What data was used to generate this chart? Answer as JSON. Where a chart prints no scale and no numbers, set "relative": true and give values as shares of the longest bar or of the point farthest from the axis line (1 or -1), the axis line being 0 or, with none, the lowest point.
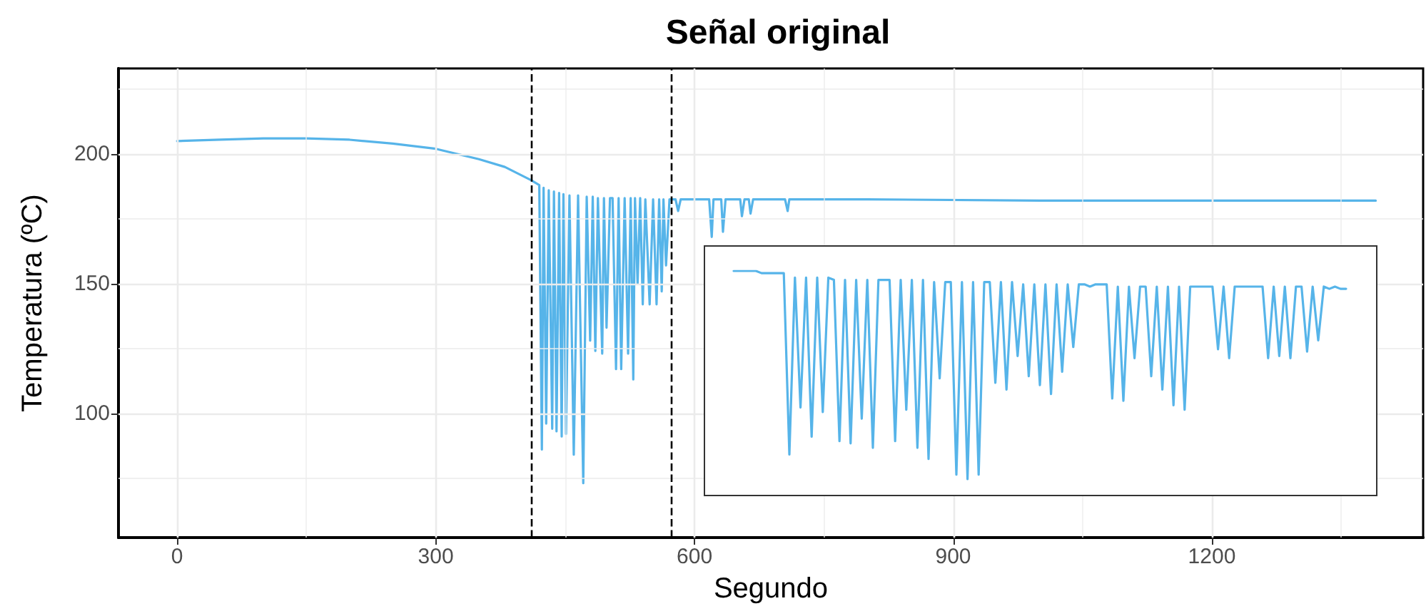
{
  "chart_data": [
    {
      "type": "line",
      "title": "Señal original",
      "xlabel": "Segundo",
      "ylabel": "Temperatura (ºC)",
      "xlim": [
        -68,
        1445
      ],
      "ylim": [
        52,
        233
      ],
      "xticks": [
        0,
        300,
        600,
        900,
        1200
      ],
      "yticks": [
        100,
        150,
        200
      ],
      "grid": true,
      "marker": "none",
      "line_style": "solid",
      "series": [
        {
          "color": "#56b4e9",
          "x": [
            0,
            50,
            100,
            150,
            200,
            250,
            300,
            350,
            380,
            410,
            420,
            423,
            425,
            428,
            431,
            435,
            437,
            440,
            443,
            446,
            448,
            451,
            455,
            460,
            465,
            471,
            475,
            479,
            482,
            485,
            488,
            493,
            495,
            498,
            502,
            505,
            509,
            512,
            515,
            519,
            523,
            526,
            529,
            531,
            534,
            537,
            540,
            543,
            548,
            552,
            556,
            559,
            562,
            564,
            567,
            571,
            578,
            581,
            584,
            617,
            620,
            622,
            631,
            633,
            636,
            653,
            655,
            658,
            663,
            665,
            668,
            705,
            708,
            710,
            800,
            1000,
            1200,
            1390
          ],
          "values": [
            205,
            205.5,
            206,
            206,
            205.5,
            204,
            202,
            198,
            195,
            190,
            188,
            86,
            187,
            96,
            186,
            94,
            185.5,
            93,
            185,
            91,
            184.5,
            92,
            184,
            84,
            184,
            73,
            183.5,
            128,
            183.5,
            124,
            183,
            123,
            183,
            133,
            183,
            183,
            117,
            183,
            117,
            183,
            123,
            183,
            113,
            183,
            150,
            183,
            142,
            182.5,
            142,
            182.5,
            142,
            182.5,
            147,
            182.5,
            157,
            182.5,
            182.5,
            178,
            182.5,
            182.5,
            168,
            182.5,
            182.5,
            170,
            182.5,
            182.5,
            176,
            182.5,
            182.5,
            177,
            182.5,
            182.5,
            178,
            182.5,
            182.5,
            182,
            182,
            182
          ]
        }
      ],
      "ref_lines": [
        {
          "axis": "x",
          "value": 410,
          "color": "#000000",
          "line_style": "dashed"
        },
        {
          "axis": "x",
          "value": 573,
          "color": "#000000",
          "line_style": "dashed"
        }
      ]
    },
    {
      "type": "line",
      "relative": true,
      "tick_labels": false,
      "marker": "none",
      "line_style": "solid",
      "categories": [
        null,
        null,
        null,
        null,
        null,
        null,
        null,
        null,
        null,
        null,
        null,
        null,
        null,
        null,
        null,
        null,
        null,
        null,
        null,
        null,
        null,
        null,
        null,
        null,
        null,
        null,
        null,
        null,
        null,
        null,
        null,
        null,
        null,
        null,
        null,
        null,
        null,
        null,
        null,
        null,
        null,
        null,
        null,
        null,
        null,
        null,
        null,
        null,
        null,
        null,
        null,
        null,
        null,
        null,
        null,
        null,
        null,
        null,
        null,
        null,
        null,
        null,
        null,
        null,
        null,
        null,
        null,
        null,
        null,
        null,
        null,
        null,
        null,
        null,
        null,
        null,
        null,
        null,
        null,
        null,
        null,
        null,
        null,
        null,
        null,
        null,
        null,
        null,
        null,
        null,
        null,
        null,
        null,
        null,
        null,
        null,
        null,
        null,
        null,
        null,
        null,
        null,
        null,
        null,
        null,
        null,
        null,
        null,
        null,
        null,
        null
      ],
      "series": [
        {
          "color": "#56b4e9",
          "values": [
            1.0,
            1.0,
            1.0,
            1.0,
            1.0,
            0.99,
            0.99,
            0.99,
            0.99,
            0.99,
            0.18,
            0.97,
            0.39,
            0.97,
            0.26,
            0.97,
            0.37,
            0.97,
            0.96,
            0.24,
            0.96,
            0.23,
            0.96,
            0.34,
            0.96,
            0.21,
            0.96,
            0.96,
            0.96,
            0.24,
            0.96,
            0.38,
            0.96,
            0.21,
            0.96,
            0.16,
            0.95,
            0.52,
            0.95,
            0.95,
            0.09,
            0.95,
            0.07,
            0.95,
            0.09,
            0.95,
            0.95,
            0.5,
            0.95,
            0.47,
            0.95,
            0.62,
            0.94,
            0.53,
            0.94,
            0.49,
            0.94,
            0.45,
            0.94,
            0.55,
            0.94,
            0.66,
            0.94,
            0.94,
            0.93,
            0.94,
            0.94,
            0.94,
            0.43,
            0.93,
            0.42,
            0.93,
            0.61,
            0.93,
            0.93,
            0.53,
            0.93,
            0.47,
            0.93,
            0.4,
            0.93,
            0.38,
            0.93,
            0.93,
            0.93,
            0.93,
            0.93,
            0.65,
            0.93,
            0.61,
            0.93,
            0.93,
            0.93,
            0.93,
            0.93,
            0.93,
            0.61,
            0.93,
            0.62,
            0.93,
            0.61,
            0.93,
            0.93,
            0.64,
            0.93,
            0.69,
            0.93,
            0.92,
            0.93,
            0.92,
            0.92
          ]
        }
      ]
    }
  ]
}
